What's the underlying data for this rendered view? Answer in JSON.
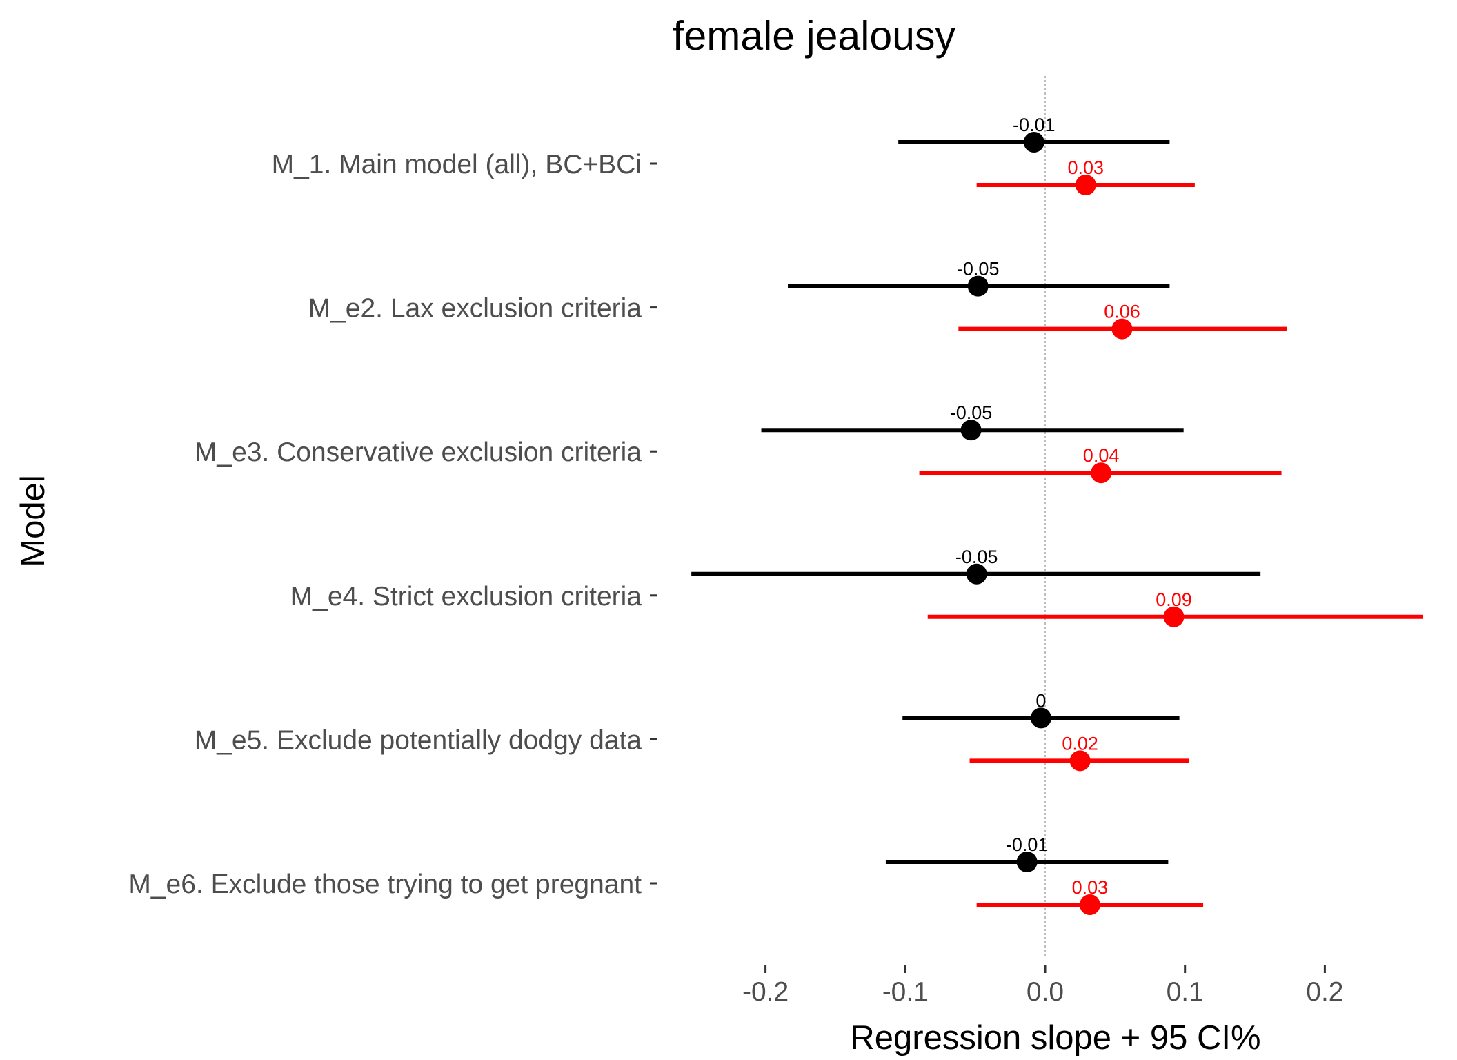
{
  "chart_data": {
    "type": "forest",
    "title": "female jealousy",
    "xlabel": "Regression slope + 95 CI%",
    "ylabel": "Model",
    "xlim": [
      -0.27,
      0.27
    ],
    "xticks": [
      -0.2,
      -0.1,
      0.0,
      0.1,
      0.2
    ],
    "xtick_labels": [
      "-0.2",
      "-0.1",
      "0.0",
      "0.1",
      "0.2"
    ],
    "reference_line": 0,
    "legend": "none",
    "categories": [
      "M_1. Main model (all), BC+BCi",
      "M_e2. Lax exclusion criteria",
      "M_e3. Conservative exclusion criteria",
      "M_e4. Strict exclusion criteria",
      "M_e5. Exclude potentially dodgy data",
      "M_e6. Exclude those trying to get pregnant"
    ],
    "series": [
      {
        "color": "#000000",
        "estimates": [
          -0.008,
          -0.048,
          -0.053,
          -0.049,
          -0.003,
          -0.013
        ],
        "lower": [
          -0.105,
          -0.184,
          -0.203,
          -0.253,
          -0.102,
          -0.114
        ],
        "upper": [
          0.089,
          0.089,
          0.099,
          0.154,
          0.096,
          0.088
        ],
        "labels": [
          "-0.01",
          "-0.05",
          "-0.05",
          "-0.05",
          "0",
          "-0.01"
        ]
      },
      {
        "color": "#ff0000",
        "estimates": [
          0.029,
          0.055,
          0.04,
          0.092,
          0.025,
          0.032
        ],
        "lower": [
          -0.049,
          -0.062,
          -0.09,
          -0.084,
          -0.054,
          -0.049
        ],
        "upper": [
          0.107,
          0.173,
          0.169,
          0.27,
          0.103,
          0.113
        ],
        "labels": [
          "0.03",
          "0.06",
          "0.04",
          "0.09",
          "0.02",
          "0.03"
        ]
      }
    ]
  }
}
